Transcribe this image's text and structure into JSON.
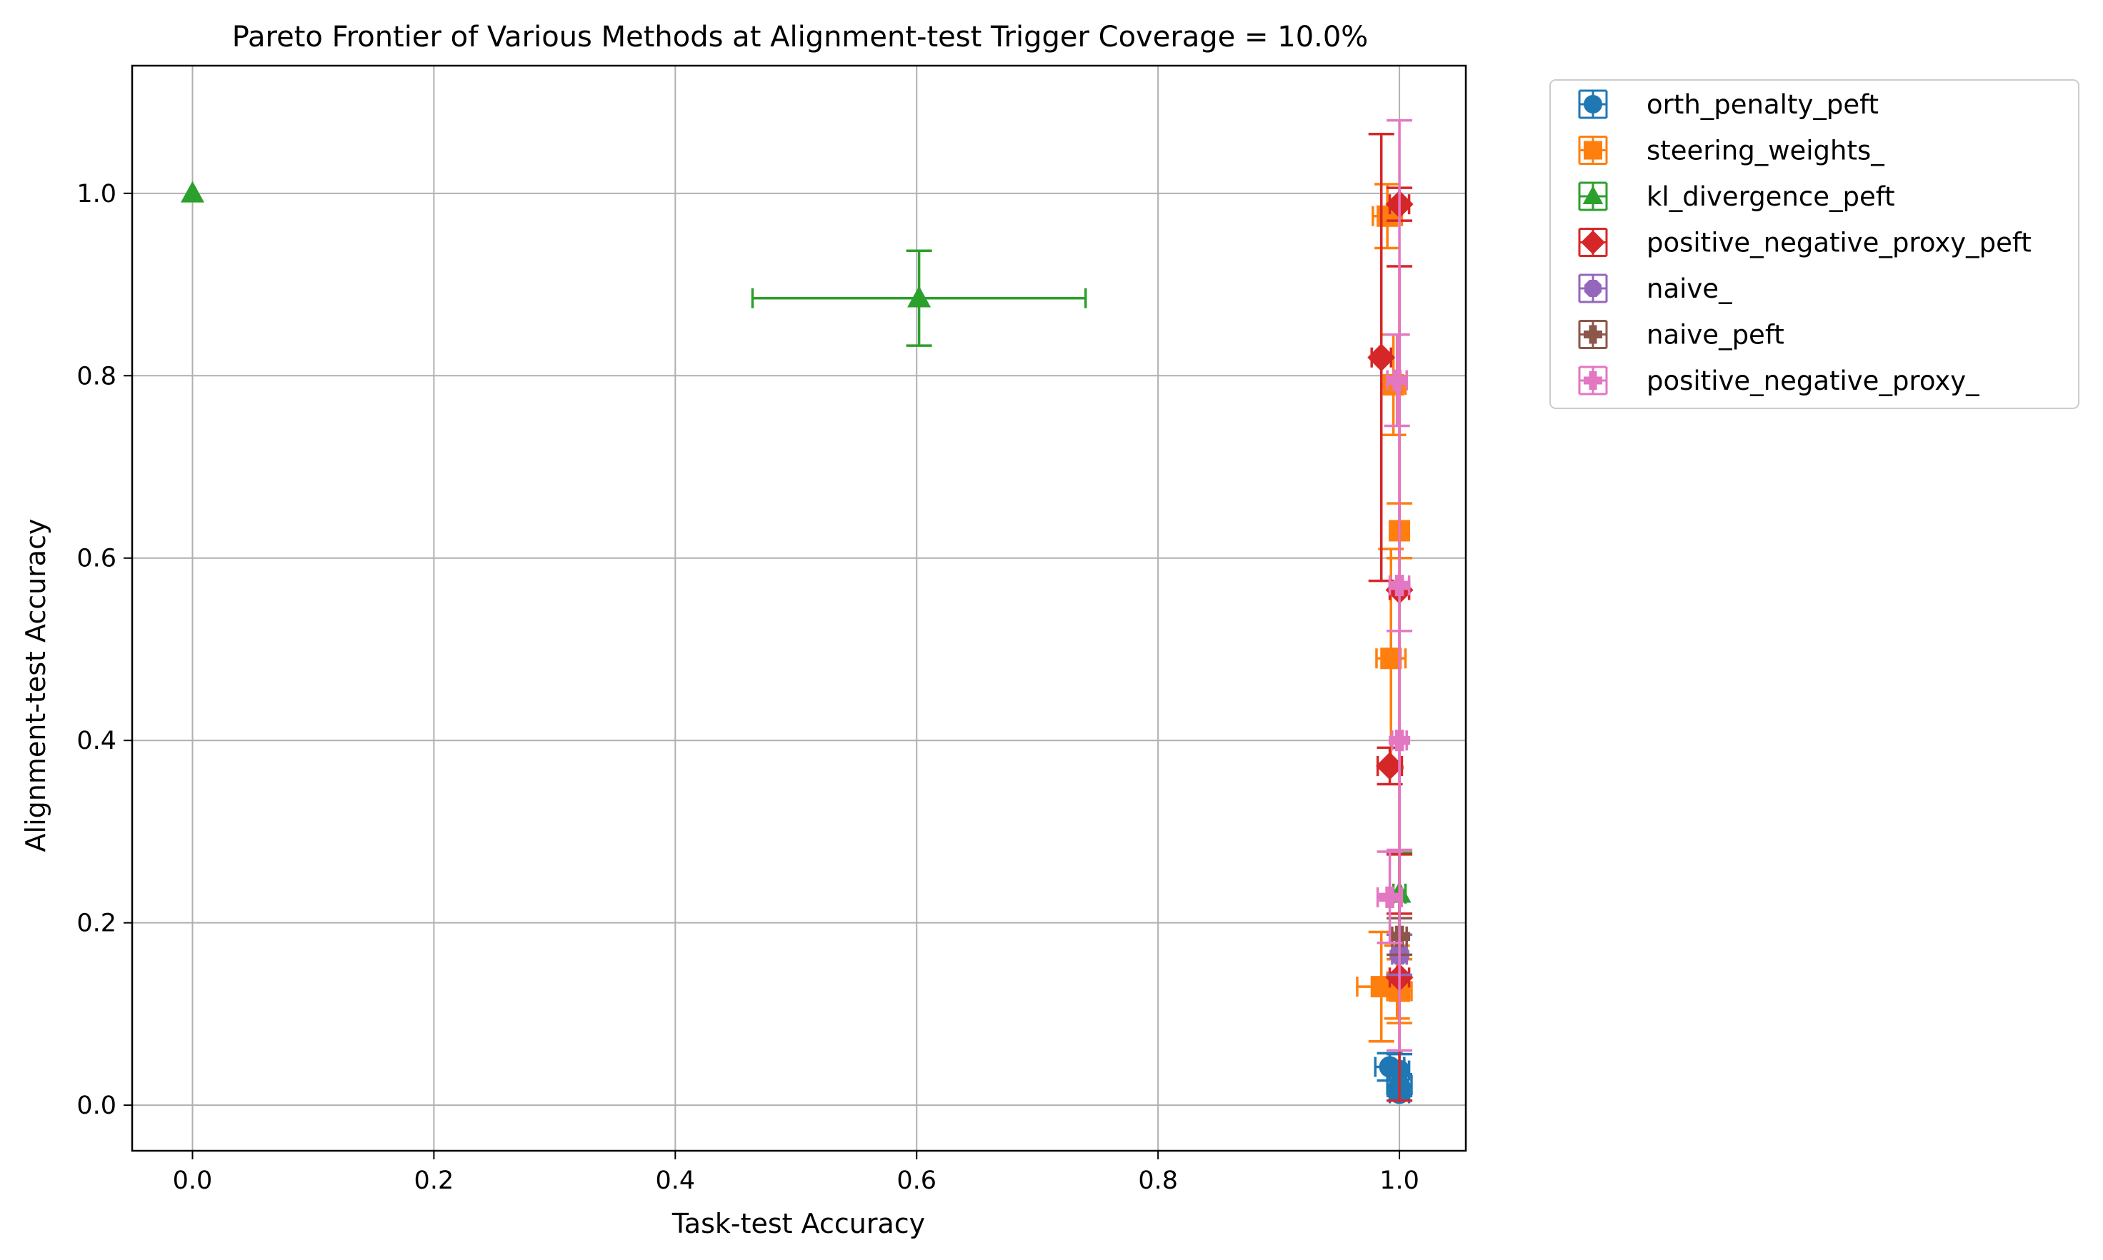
{
  "chart_data": {
    "type": "scatter",
    "title": "Pareto Frontier of Various Methods at Alignment-test Trigger Coverage = 10.0%",
    "xlabel": "Task-test Accuracy",
    "ylabel": "Alignment-test Accuracy",
    "xlim": [
      -0.05,
      1.055
    ],
    "ylim": [
      -0.05,
      1.14
    ],
    "xticks": [
      "0.0",
      "0.2",
      "0.4",
      "0.6",
      "0.8",
      "1.0"
    ],
    "yticks": [
      "0.0",
      "0.2",
      "0.4",
      "0.6",
      "0.8",
      "1.0"
    ],
    "grid": true,
    "legend_position": "outside-top-right",
    "series": [
      {
        "name": "orth_penalty_peft",
        "color": "#1f77b4",
        "marker": "circle",
        "points": [
          {
            "x": 0.992,
            "y": 0.042,
            "xerr": 0.012,
            "yerr": 0.015
          },
          {
            "x": 1.0,
            "y": 0.038,
            "xerr": 0.008,
            "yerr": 0.018
          },
          {
            "x": 1.0,
            "y": 0.022,
            "xerr": 0.01,
            "yerr": 0.012
          },
          {
            "x": 1.0,
            "y": 0.013,
            "xerr": 0.008,
            "yerr": 0.008
          }
        ]
      },
      {
        "name": "steering_weights_",
        "color": "#ff7f0e",
        "marker": "square",
        "points": [
          {
            "x": 0.99,
            "y": 0.975,
            "xerr": 0.012,
            "yerr": 0.035
          },
          {
            "x": 0.995,
            "y": 0.79,
            "xerr": 0.01,
            "yerr": 0.055
          },
          {
            "x": 1.0,
            "y": 0.63,
            "xerr": 0.006,
            "yerr": 0.03
          },
          {
            "x": 0.993,
            "y": 0.49,
            "xerr": 0.012,
            "yerr": 0.12
          },
          {
            "x": 0.998,
            "y": 0.135,
            "xerr": 0.008,
            "yerr": 0.04
          },
          {
            "x": 0.985,
            "y": 0.13,
            "xerr": 0.02,
            "yerr": 0.06
          },
          {
            "x": 1.0,
            "y": 0.125,
            "xerr": 0.01,
            "yerr": 0.035
          }
        ]
      },
      {
        "name": "kl_divergence_peft",
        "color": "#2ca02c",
        "marker": "triangle",
        "points": [
          {
            "x": 0.0,
            "y": 1.0,
            "xerr": 0.0,
            "yerr": 0.0
          },
          {
            "x": 0.602,
            "y": 0.885,
            "xerr": 0.138,
            "yerr": 0.052
          },
          {
            "x": 1.0,
            "y": 0.232,
            "xerr": 0.005,
            "yerr": 0.045
          }
        ]
      },
      {
        "name": "positive_negative_proxy_peft",
        "color": "#d62728",
        "marker": "diamond",
        "points": [
          {
            "x": 1.0,
            "y": 0.988,
            "xerr": 0.008,
            "yerr": 0.018
          },
          {
            "x": 0.985,
            "y": 0.82,
            "xerr": 0.008,
            "yerr": 0.245
          },
          {
            "x": 1.0,
            "y": 0.565,
            "xerr": 0.008,
            "yerr": 0.355
          },
          {
            "x": 0.992,
            "y": 0.372,
            "xerr": 0.01,
            "yerr": 0.02
          },
          {
            "x": 1.0,
            "y": 0.14,
            "xerr": 0.008,
            "yerr": 0.135
          }
        ]
      },
      {
        "name": "naive_",
        "color": "#9467bd",
        "marker": "octagon",
        "points": [
          {
            "x": 1.0,
            "y": 0.165,
            "xerr": 0.006,
            "yerr": 0.022
          }
        ]
      },
      {
        "name": "naive_peft",
        "color": "#8c564b",
        "marker": "plus",
        "points": [
          {
            "x": 1.0,
            "y": 0.185,
            "xerr": 0.006,
            "yerr": 0.02
          }
        ]
      },
      {
        "name": "positive_negative_proxy_",
        "color": "#e377c2",
        "marker": "plus",
        "points": [
          {
            "x": 1.0,
            "y": 0.57,
            "xerr": 0.008,
            "yerr": 0.51
          },
          {
            "x": 0.998,
            "y": 0.795,
            "xerr": 0.008,
            "yerr": 0.05
          },
          {
            "x": 1.0,
            "y": 0.4,
            "xerr": 0.006,
            "yerr": 0.12
          },
          {
            "x": 0.992,
            "y": 0.228,
            "xerr": 0.01,
            "yerr": 0.05
          }
        ]
      }
    ]
  }
}
